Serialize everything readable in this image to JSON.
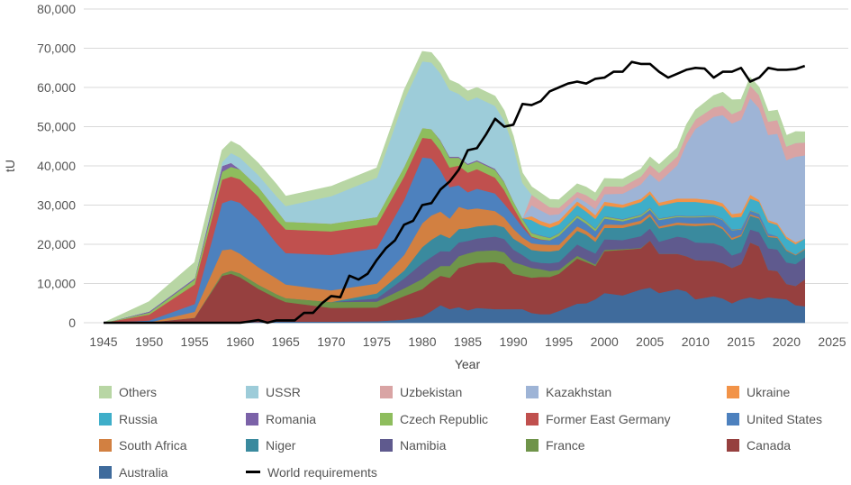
{
  "chart_data": {
    "type": "area",
    "stacked": true,
    "title": "",
    "xlabel": "Year",
    "ylabel": "tU",
    "xlim": [
      1945,
      2025
    ],
    "ylim": [
      0,
      80000
    ],
    "grid": true,
    "legend_position": "bottom",
    "x_ticks": [
      "1945",
      "1950",
      "1955",
      "1960",
      "1965",
      "1970",
      "1975",
      "1980",
      "1985",
      "1990",
      "1995",
      "2000",
      "2005",
      "2010",
      "2015",
      "2020",
      "2025"
    ],
    "y_ticks": [
      "0",
      "10,000",
      "20,000",
      "30,000",
      "40,000",
      "50,000",
      "60,000",
      "70,000",
      "80,000"
    ],
    "x": [
      1945,
      1950,
      1955,
      1958,
      1959,
      1960,
      1962,
      1964,
      1965,
      1970,
      1975,
      1978,
      1980,
      1981,
      1982,
      1983,
      1984,
      1985,
      1986,
      1988,
      1989,
      1990,
      1991,
      1992,
      1993,
      1994,
      1995,
      1997,
      1998,
      1999,
      2000,
      2002,
      2004,
      2005,
      2006,
      2008,
      2009,
      2010,
      2012,
      2013,
      2014,
      2015,
      2016,
      2017,
      2018,
      2019,
      2020,
      2021,
      2022
    ],
    "series": [
      {
        "name": "Australia",
        "color": "#3f6b9c",
        "values": [
          0,
          0,
          0,
          0,
          0,
          100,
          200,
          300,
          300,
          300,
          400,
          800,
          1600,
          3000,
          4500,
          3500,
          4000,
          3200,
          3800,
          3500,
          3500,
          3500,
          3500,
          2500,
          2200,
          2200,
          3000,
          4900,
          5000,
          6000,
          7600,
          7000,
          8500,
          9000,
          7600,
          8600,
          8000,
          6000,
          6800,
          6200,
          5000,
          6000,
          6500,
          6000,
          6500,
          6200,
          6000,
          4500,
          4200
        ]
      },
      {
        "name": "Canada",
        "color": "#96403f",
        "values": [
          0,
          100,
          1300,
          12000,
          12500,
          11500,
          8500,
          6000,
          5000,
          3500,
          3500,
          6000,
          7000,
          7500,
          7500,
          8000,
          10000,
          11500,
          11500,
          12000,
          11500,
          9000,
          8500,
          9000,
          9500,
          9500,
          9500,
          11500,
          10500,
          8500,
          10700,
          11600,
          10500,
          12000,
          10000,
          9000,
          9000,
          10000,
          9000,
          9000,
          9000,
          9000,
          14000,
          13500,
          7000,
          7000,
          3900,
          4900,
          6900
        ]
      },
      {
        "name": "France",
        "color": "#6f944a",
        "values": [
          0,
          0,
          0,
          500,
          800,
          1000,
          1000,
          1000,
          1000,
          1500,
          1500,
          2000,
          2600,
          2500,
          2500,
          3000,
          3000,
          3000,
          3000,
          3000,
          3000,
          3000,
          2800,
          2500,
          2000,
          1500,
          1000,
          700,
          500,
          400,
          300,
          200,
          100,
          0,
          0,
          0,
          0,
          0,
          0,
          0,
          0,
          0,
          0,
          0,
          0,
          0,
          0,
          0,
          0
        ]
      },
      {
        "name": "Namibia",
        "color": "#5f5a8e",
        "values": [
          0,
          0,
          0,
          0,
          0,
          0,
          0,
          0,
          0,
          0,
          800,
          2500,
          4000,
          3800,
          3800,
          3700,
          3500,
          3200,
          3200,
          3500,
          3400,
          3200,
          2500,
          1700,
          1600,
          2000,
          2000,
          2900,
          2800,
          2800,
          2700,
          2300,
          3000,
          3100,
          3100,
          4400,
          4600,
          4500,
          4500,
          4300,
          3200,
          3000,
          3300,
          3600,
          5500,
          5500,
          5500,
          5600,
          5600
        ]
      },
      {
        "name": "Niger",
        "color": "#3a8a9e",
        "values": [
          0,
          0,
          0,
          0,
          0,
          0,
          0,
          0,
          0,
          0,
          1300,
          2000,
          4100,
          4400,
          4300,
          3400,
          3400,
          3200,
          3100,
          3000,
          2960,
          2800,
          2800,
          2900,
          3000,
          3000,
          3000,
          3500,
          3700,
          3000,
          2900,
          3100,
          3200,
          3100,
          3400,
          3000,
          3200,
          4200,
          4700,
          4400,
          4000,
          4100,
          3500,
          3500,
          2900,
          2980,
          2990,
          2250,
          2020
        ]
      },
      {
        "name": "South Africa",
        "color": "#d28041",
        "values": [
          0,
          0,
          1500,
          6000,
          5500,
          5000,
          4500,
          4000,
          3500,
          3000,
          2500,
          4000,
          6100,
          6200,
          5800,
          5000,
          5700,
          4800,
          4600,
          3500,
          2500,
          2500,
          1700,
          1700,
          1700,
          1700,
          1400,
          1100,
          1000,
          1000,
          900,
          800,
          800,
          700,
          500,
          600,
          600,
          600,
          500,
          500,
          500,
          400,
          400,
          300,
          300,
          300,
          300,
          200,
          200
        ]
      },
      {
        "name": "United States",
        "color": "#4d81be",
        "values": [
          0,
          500,
          2000,
          12000,
          12500,
          13000,
          12000,
          9000,
          8000,
          9000,
          9000,
          14000,
          16800,
          14500,
          10500,
          8000,
          5500,
          4400,
          5000,
          4500,
          3500,
          3500,
          2600,
          1500,
          1200,
          1100,
          2300,
          2200,
          1800,
          1700,
          1500,
          900,
          1000,
          1000,
          1600,
          1400,
          1500,
          1600,
          1600,
          1800,
          1900,
          1300,
          900,
          900,
          600,
          60,
          7,
          7,
          75
        ]
      },
      {
        "name": "Former East Germany",
        "color": "#c0504e",
        "values": [
          0,
          1500,
          5000,
          6000,
          6000,
          6000,
          6000,
          6000,
          6000,
          6000,
          6000,
          6000,
          5000,
          5000,
          5000,
          5000,
          5000,
          5000,
          5000,
          4000,
          3500,
          2000,
          1000,
          200,
          100,
          50,
          0,
          0,
          0,
          0,
          0,
          0,
          0,
          0,
          0,
          0,
          0,
          0,
          0,
          0,
          0,
          0,
          0,
          0,
          0,
          0,
          0,
          0,
          0
        ]
      },
      {
        "name": "Czech Republic",
        "color": "#8ebd5d",
        "values": [
          0,
          500,
          1200,
          2000,
          2500,
          2500,
          2500,
          2500,
          2000,
          2000,
          2000,
          2500,
          2500,
          2500,
          2500,
          2500,
          2000,
          2000,
          2000,
          2000,
          2000,
          1500,
          1200,
          900,
          900,
          600,
          600,
          600,
          600,
          600,
          500,
          450,
          400,
          400,
          350,
          250,
          250,
          250,
          200,
          200,
          150,
          150,
          140,
          140,
          0,
          0,
          0,
          0,
          0
        ]
      },
      {
        "name": "Romania",
        "color": "#7b62a8",
        "values": [
          0,
          300,
          400,
          1500,
          1000,
          0,
          0,
          0,
          0,
          0,
          0,
          0,
          0,
          0,
          200,
          300,
          300,
          300,
          300,
          300,
          200,
          100,
          100,
          100,
          100,
          100,
          100,
          100,
          100,
          100,
          100,
          100,
          100,
          100,
          100,
          100,
          100,
          100,
          100,
          100,
          100,
          100,
          50,
          0,
          0,
          0,
          0,
          0,
          0
        ]
      },
      {
        "name": "Russia",
        "color": "#3eaec9",
        "values": [
          0,
          0,
          0,
          0,
          0,
          0,
          0,
          0,
          0,
          0,
          0,
          0,
          0,
          0,
          0,
          0,
          0,
          0,
          0,
          0,
          0,
          0,
          0,
          3200,
          2700,
          2500,
          2200,
          2500,
          2400,
          2400,
          2700,
          2900,
          3200,
          3400,
          3200,
          3500,
          3600,
          3600,
          2900,
          3100,
          3000,
          3000,
          2900,
          2900,
          2900,
          2900,
          2800,
          2600,
          2500
        ]
      },
      {
        "name": "Ukraine",
        "color": "#f29348",
        "values": [
          0,
          0,
          0,
          0,
          0,
          0,
          0,
          0,
          0,
          0,
          0,
          0,
          0,
          0,
          0,
          0,
          0,
          0,
          0,
          0,
          0,
          0,
          0,
          1000,
          1000,
          1000,
          1000,
          1000,
          1000,
          1000,
          1000,
          800,
          800,
          800,
          800,
          850,
          850,
          850,
          950,
          900,
          900,
          1000,
          1000,
          500,
          500,
          500,
          500,
          500,
          0
        ]
      },
      {
        "name": "Kazakhstan",
        "color": "#9eb4d6",
        "values": [
          0,
          0,
          0,
          0,
          0,
          0,
          0,
          0,
          0,
          0,
          0,
          0,
          0,
          0,
          0,
          0,
          0,
          0,
          0,
          0,
          0,
          0,
          0,
          2800,
          2700,
          2240,
          1600,
          1000,
          1300,
          1500,
          1900,
          2800,
          3700,
          4400,
          5300,
          8500,
          14000,
          17800,
          21300,
          22500,
          23100,
          23800,
          24600,
          23400,
          21700,
          22800,
          19500,
          21800,
          21200
        ]
      },
      {
        "name": "Uzbekistan",
        "color": "#d9a4a4",
        "values": [
          0,
          0,
          0,
          0,
          0,
          0,
          0,
          0,
          0,
          0,
          0,
          0,
          0,
          0,
          0,
          0,
          0,
          0,
          0,
          0,
          0,
          0,
          0,
          2700,
          2400,
          2000,
          1650,
          1450,
          1900,
          2100,
          2000,
          1800,
          2000,
          2300,
          2300,
          2300,
          2400,
          2400,
          2400,
          2400,
          2400,
          2400,
          3300,
          3300,
          3400,
          3500,
          3500,
          3500,
          3300
        ]
      },
      {
        "name": "USSR",
        "color": "#9dccd9",
        "values": [
          0,
          0,
          0,
          1000,
          2500,
          3000,
          3000,
          3500,
          4000,
          7000,
          10000,
          17000,
          17000,
          17000,
          17000,
          17000,
          16000,
          16000,
          16000,
          16000,
          15500,
          14000,
          9000,
          0,
          0,
          0,
          0,
          0,
          0,
          0,
          0,
          0,
          0,
          0,
          0,
          0,
          0,
          0,
          0,
          0,
          0,
          0,
          0,
          0,
          0,
          0,
          0,
          0,
          0
        ]
      },
      {
        "name": "Others",
        "color": "#b8d6a4",
        "values": [
          0,
          2500,
          4000,
          3000,
          3000,
          3000,
          3000,
          3000,
          2500,
          2500,
          2500,
          2500,
          2500,
          2500,
          2500,
          2500,
          2500,
          2500,
          2500,
          2500,
          2500,
          2500,
          2500,
          2000,
          2000,
          2000,
          2000,
          2000,
          2000,
          2000,
          2000,
          1900,
          1900,
          2000,
          2100,
          2100,
          2400,
          2400,
          3000,
          3400,
          3600,
          2700,
          2000,
          2000,
          2600,
          2500,
          2800,
          2900,
          2700
        ]
      }
    ],
    "line": {
      "name": "World requirements",
      "color": "#000000",
      "x": [
        1945,
        1960,
        1961,
        1962,
        1963,
        1964,
        1965,
        1966,
        1967,
        1968,
        1969,
        1970,
        1971,
        1972,
        1973,
        1974,
        1975,
        1976,
        1977,
        1978,
        1979,
        1980,
        1981,
        1982,
        1983,
        1984,
        1985,
        1986,
        1987,
        1988,
        1989,
        1990,
        1991,
        1992,
        1993,
        1994,
        1995,
        1996,
        1997,
        1998,
        1999,
        2000,
        2001,
        2002,
        2003,
        2004,
        2005,
        2006,
        2007,
        2008,
        2009,
        2010,
        2011,
        2012,
        2013,
        2014,
        2015,
        2016,
        2017,
        2018,
        2019,
        2020,
        2021,
        2022
      ],
      "values": [
        0,
        0,
        300,
        700,
        0,
        600,
        600,
        600,
        2500,
        2500,
        5000,
        6800,
        6500,
        12000,
        11000,
        12500,
        16000,
        19000,
        21000,
        25000,
        26000,
        30000,
        30500,
        34000,
        36000,
        39000,
        44000,
        44500,
        48000,
        52000,
        50000,
        50500,
        55800,
        55500,
        56500,
        59000,
        60000,
        61000,
        61500,
        61000,
        62200,
        62500,
        64000,
        64000,
        66500,
        66000,
        66000,
        64000,
        62500,
        63500,
        64500,
        65000,
        64800,
        62500,
        64000,
        64000,
        65000,
        61500,
        62500,
        65000,
        64500,
        64500,
        64700,
        65500
      ]
    }
  },
  "legend": [
    {
      "label": "Others",
      "color": "#b8d6a4"
    },
    {
      "label": "USSR",
      "color": "#9dccd9"
    },
    {
      "label": "Uzbekistan",
      "color": "#d9a4a4"
    },
    {
      "label": "Kazakhstan",
      "color": "#9eb4d6"
    },
    {
      "label": "Ukraine",
      "color": "#f29348"
    },
    {
      "label": "Russia",
      "color": "#3eaec9"
    },
    {
      "label": "Romania",
      "color": "#7b62a8"
    },
    {
      "label": "Czech Republic",
      "color": "#8ebd5d"
    },
    {
      "label": "Former East Germany",
      "color": "#c0504e"
    },
    {
      "label": "United States",
      "color": "#4d81be"
    },
    {
      "label": "South Africa",
      "color": "#d28041"
    },
    {
      "label": "Niger",
      "color": "#3a8a9e"
    },
    {
      "label": "Namibia",
      "color": "#5f5a8e"
    },
    {
      "label": "France",
      "color": "#6f944a"
    },
    {
      "label": "Canada",
      "color": "#96403f"
    },
    {
      "label": "Australia",
      "color": "#3f6b9c"
    },
    {
      "label": "World requirements",
      "color": "#000000",
      "line": true
    }
  ]
}
